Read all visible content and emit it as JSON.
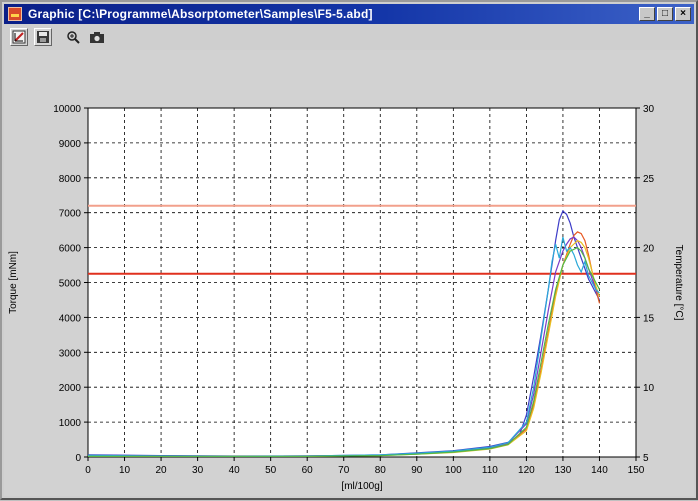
{
  "window": {
    "title": "Graphic  [C:\\Programme\\Absorptometer\\Samples\\F5-5.abd]",
    "minimize_glyph": "_",
    "maximize_glyph": "□",
    "close_glyph": "×"
  },
  "toolbar": {
    "icons": [
      "chart-tool-icon",
      "save-icon",
      "zoom-icon",
      "camera-icon"
    ]
  },
  "chart_data": {
    "type": "line",
    "xlabel": "[ml/100g]",
    "ylabel_left": "Torque [mNm]",
    "ylabel_right": "Temperature [°C]",
    "xlim": [
      0,
      150
    ],
    "ylim_left": [
      0,
      10000
    ],
    "ylim_right": [
      5,
      30
    ],
    "x_ticks": [
      0,
      10,
      20,
      30,
      40,
      50,
      60,
      70,
      80,
      90,
      100,
      110,
      120,
      130,
      140,
      150
    ],
    "y_ticks_left": [
      0,
      1000,
      2000,
      3000,
      4000,
      5000,
      6000,
      7000,
      8000,
      9000,
      10000
    ],
    "y_ticks_right": [
      5,
      10,
      15,
      20,
      25,
      30
    ],
    "grid": true,
    "reference_lines": [
      {
        "axis": "left",
        "value": 7200,
        "color": "#f2a08c"
      },
      {
        "axis": "left",
        "value": 5250,
        "color": "#e0301e"
      }
    ],
    "series": [
      {
        "color": "#3c3cc8",
        "x": [
          0,
          20,
          40,
          60,
          80,
          90,
          100,
          110,
          115,
          118,
          120,
          122,
          124,
          126,
          128,
          129,
          130,
          131,
          132,
          133,
          134,
          135,
          136,
          137,
          138,
          139,
          140
        ],
        "values": [
          60,
          40,
          30,
          30,
          60,
          120,
          180,
          300,
          420,
          600,
          1200,
          2300,
          3500,
          4800,
          6200,
          6800,
          7050,
          6950,
          6700,
          6300,
          6000,
          5700,
          5400,
          5100,
          4900,
          4700,
          4500
        ]
      },
      {
        "color": "#e85a24",
        "x": [
          0,
          20,
          40,
          60,
          80,
          90,
          100,
          110,
          115,
          120,
          122,
          124,
          126,
          128,
          130,
          132,
          133,
          134,
          135,
          136,
          137,
          138,
          139,
          140
        ],
        "values": [
          30,
          20,
          20,
          30,
          50,
          90,
          150,
          250,
          380,
          800,
          1500,
          2500,
          3600,
          4700,
          5500,
          6100,
          6350,
          6450,
          6400,
          6200,
          5800,
          5300,
          4800,
          4400
        ]
      },
      {
        "color": "#7a3cc8",
        "x": [
          0,
          20,
          40,
          60,
          80,
          90,
          100,
          110,
          115,
          120,
          122,
          124,
          126,
          128,
          130,
          131,
          132,
          133,
          134,
          135,
          136,
          137,
          138,
          139,
          140
        ],
        "values": [
          40,
          30,
          20,
          30,
          50,
          100,
          160,
          270,
          400,
          950,
          1800,
          3000,
          4200,
          5300,
          5900,
          6100,
          6250,
          6300,
          6200,
          6000,
          5700,
          5400,
          5100,
          4800,
          4600
        ]
      },
      {
        "color": "#e8c020",
        "x": [
          0,
          20,
          40,
          60,
          80,
          90,
          100,
          110,
          115,
          120,
          122,
          124,
          126,
          128,
          130,
          132,
          134,
          135,
          136,
          137,
          138,
          139,
          140
        ],
        "values": [
          20,
          20,
          20,
          20,
          40,
          80,
          130,
          230,
          350,
          750,
          1400,
          2400,
          3500,
          4600,
          5500,
          6000,
          6200,
          6150,
          6000,
          5700,
          5300,
          4900,
          4600
        ]
      },
      {
        "color": "#2aa8d8",
        "x": [
          0,
          20,
          40,
          60,
          80,
          90,
          100,
          110,
          115,
          120,
          122,
          124,
          126,
          127,
          128,
          129,
          130,
          131,
          132,
          133,
          134,
          135,
          136,
          137,
          138,
          139,
          140
        ],
        "values": [
          50,
          30,
          20,
          30,
          60,
          110,
          170,
          280,
          410,
          1000,
          2000,
          3400,
          4800,
          5600,
          6100,
          5700,
          6300,
          5900,
          6000,
          5800,
          5500,
          5300,
          5600,
          5200,
          5000,
          4800,
          4700
        ]
      },
      {
        "color": "#50b848",
        "x": [
          0,
          20,
          40,
          60,
          80,
          90,
          100,
          110,
          115,
          120,
          122,
          124,
          126,
          128,
          130,
          132,
          134,
          135,
          136,
          137,
          138,
          139,
          140
        ],
        "values": [
          20,
          20,
          20,
          20,
          40,
          80,
          140,
          240,
          360,
          850,
          1600,
          2700,
          3800,
          4800,
          5500,
          5900,
          6000,
          5900,
          5700,
          5400,
          5200,
          5000,
          4800
        ]
      }
    ]
  }
}
